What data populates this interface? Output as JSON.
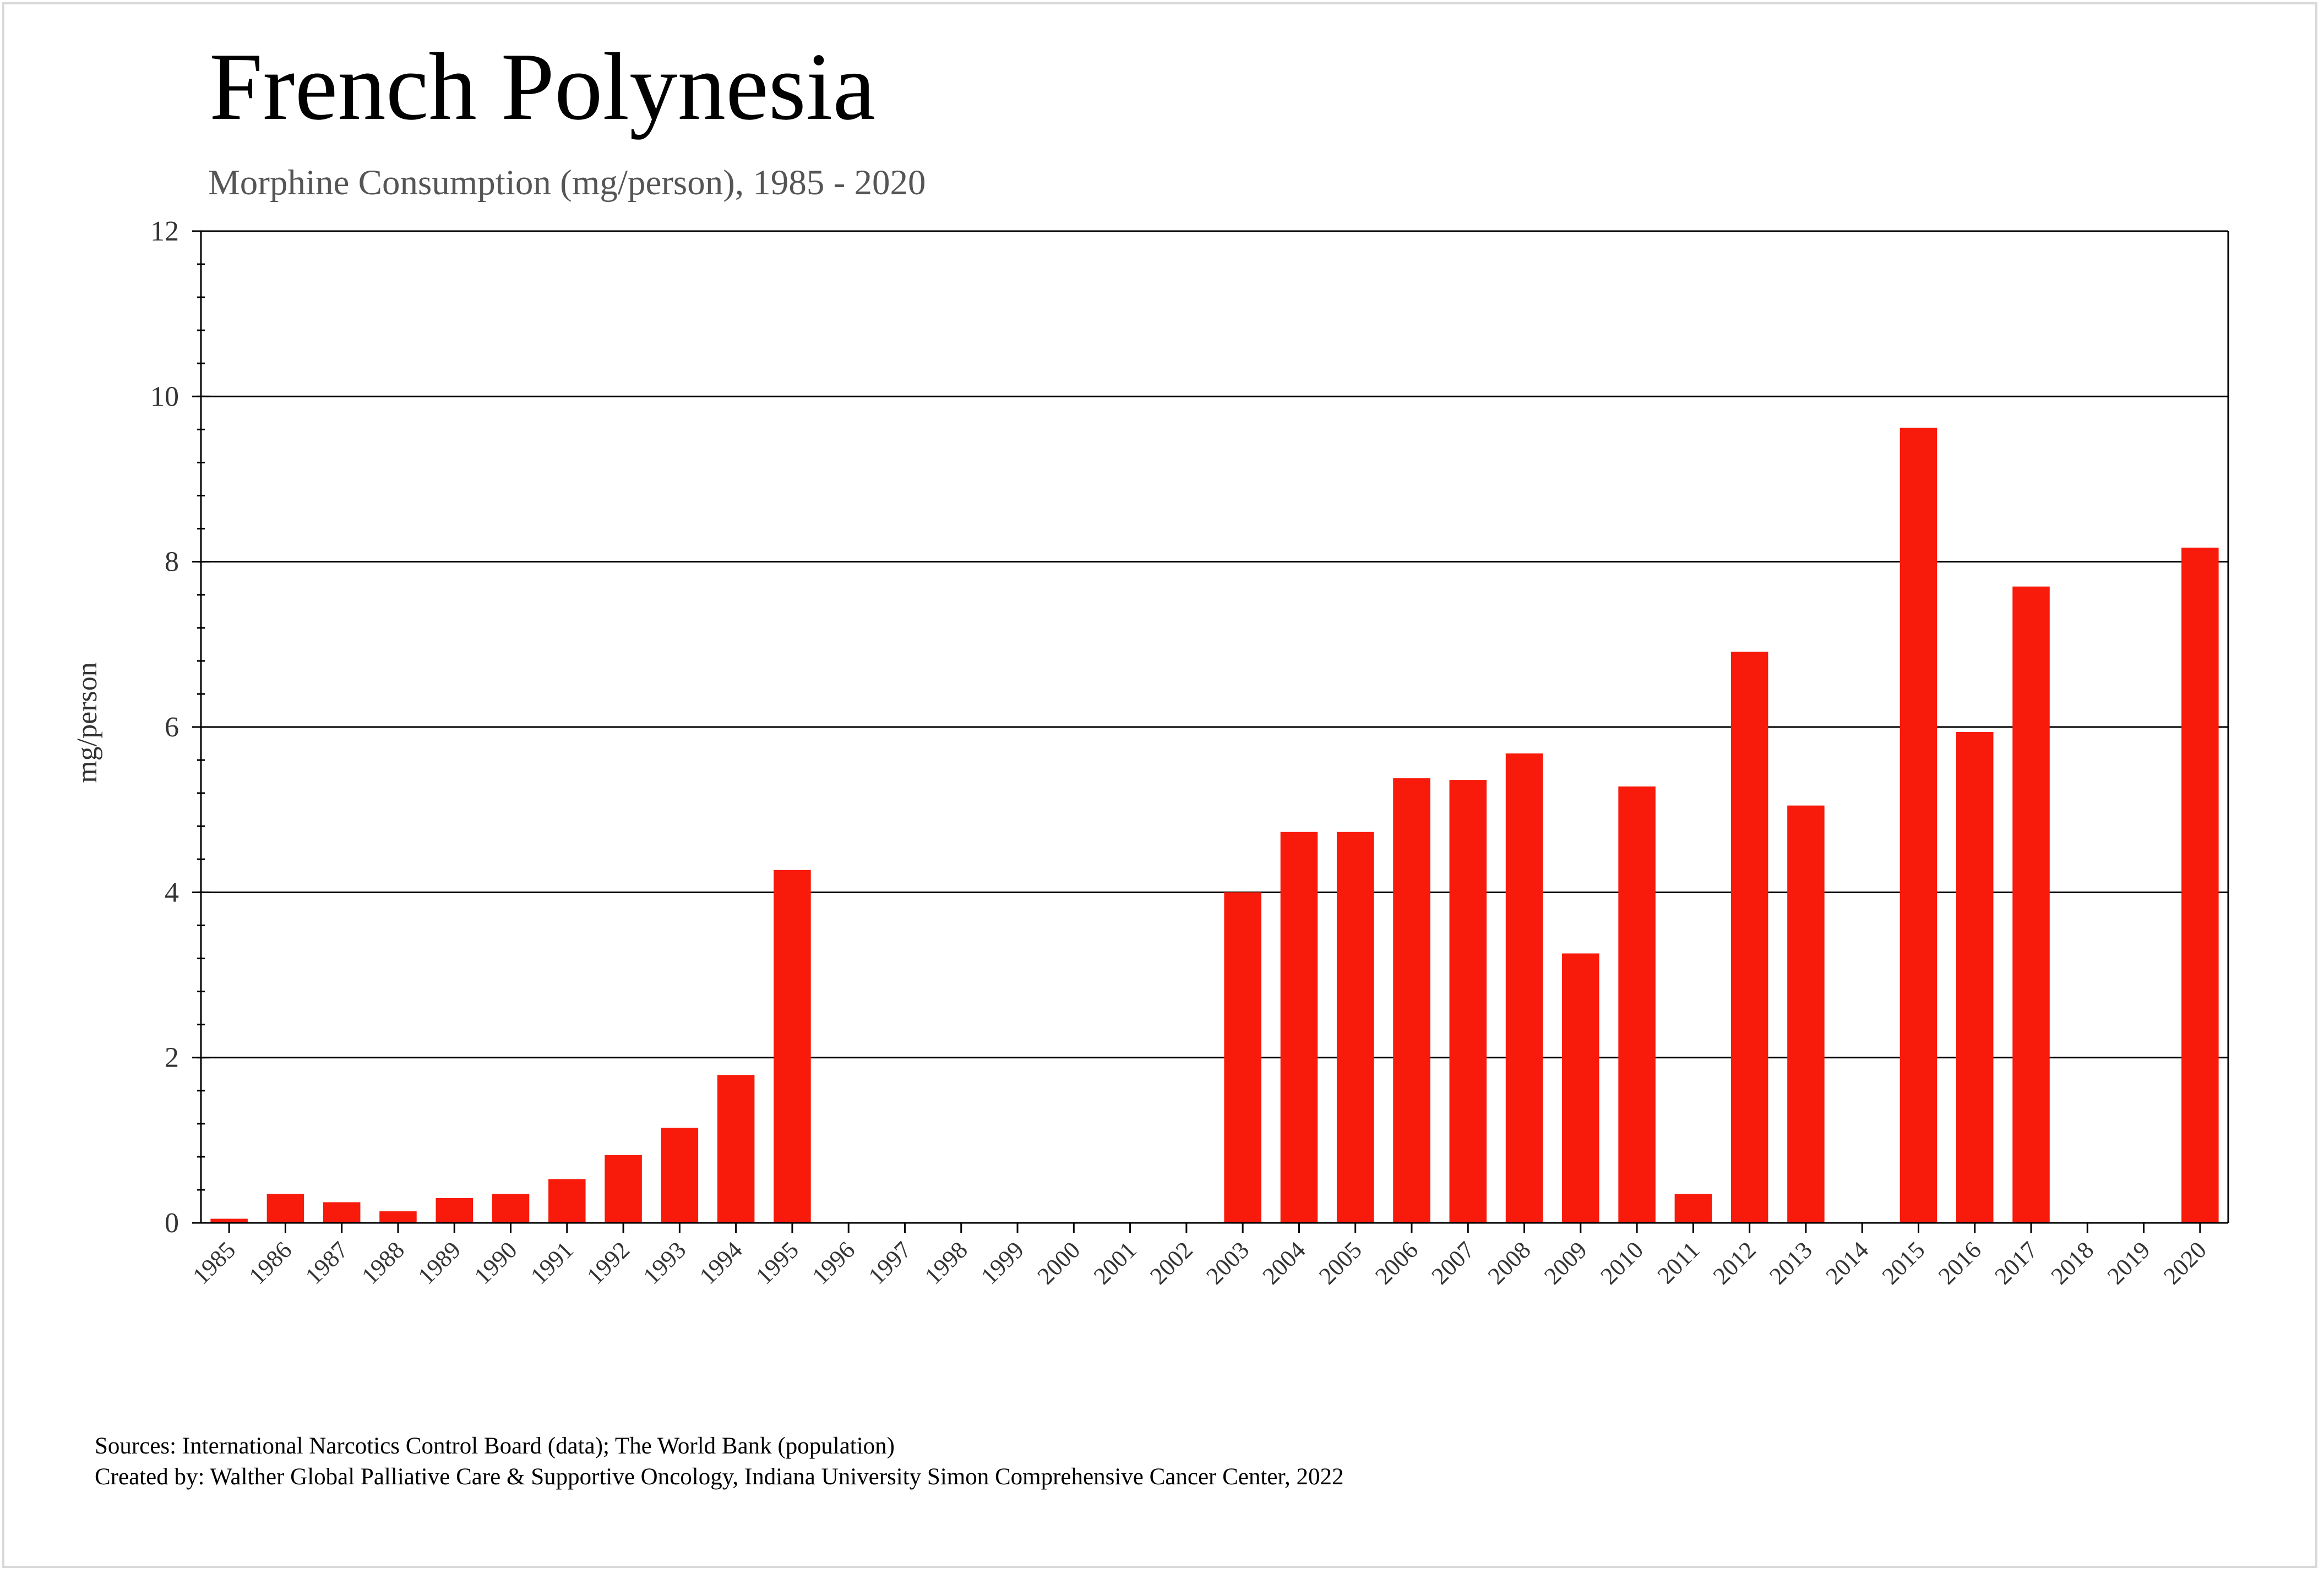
{
  "title": "French Polynesia",
  "subtitle": "Morphine Consumption (mg/person), 1985 - 2020",
  "sources": {
    "line1": "Sources: International Narcotics Control Board (data); The World Bank (population)",
    "line2": "Created by: Walther  Global Palliative Care & Supportive Oncology, Indiana University Simon Comprehensive Cancer Center, 2022"
  },
  "colors": {
    "bar": "#f81a0a",
    "grid": "#000000",
    "frame": "#d9d9d9"
  },
  "chart_data": {
    "type": "bar",
    "title": "French Polynesia",
    "subtitle": "Morphine Consumption (mg/person), 1985 - 2020",
    "xlabel": "",
    "ylabel": "mg/person",
    "ylim": [
      0,
      12
    ],
    "yticks": [
      0,
      2,
      4,
      6,
      8,
      10,
      12
    ],
    "grid": true,
    "categories": [
      "1985",
      "1986",
      "1987",
      "1988",
      "1989",
      "1990",
      "1991",
      "1992",
      "1993",
      "1994",
      "1995",
      "1996",
      "1997",
      "1998",
      "1999",
      "2000",
      "2001",
      "2002",
      "2003",
      "2004",
      "2005",
      "2006",
      "2007",
      "2008",
      "2009",
      "2010",
      "2011",
      "2012",
      "2013",
      "2014",
      "2015",
      "2016",
      "2017",
      "2018",
      "2019",
      "2020"
    ],
    "values": [
      0.05,
      0.35,
      0.25,
      0.14,
      0.3,
      0.35,
      0.53,
      0.82,
      1.15,
      1.79,
      4.27,
      0,
      0,
      0,
      0,
      0,
      0,
      0,
      4.0,
      4.73,
      4.73,
      5.38,
      5.36,
      5.68,
      3.26,
      5.28,
      0.35,
      6.91,
      5.05,
      0,
      9.62,
      5.94,
      7.7,
      0,
      0,
      8.17
    ]
  }
}
